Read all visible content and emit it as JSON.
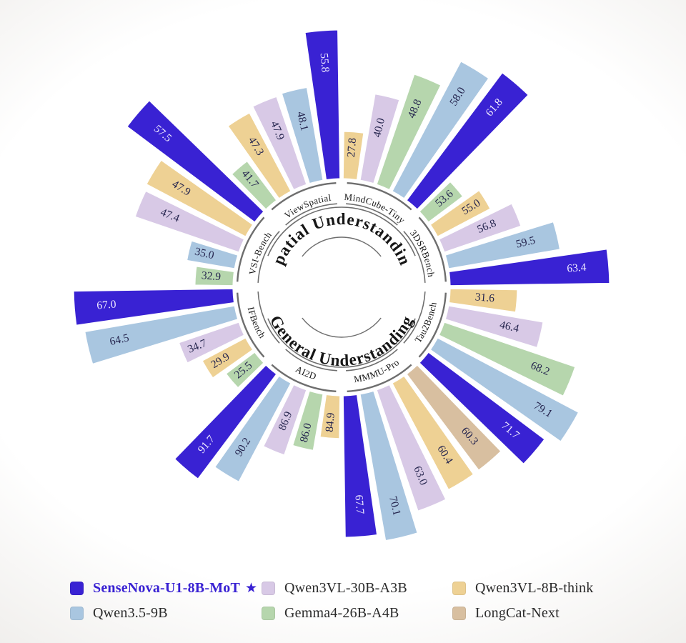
{
  "chart_data": {
    "type": "radial-bar",
    "center_labels": {
      "top": "Spatial Understanding",
      "bottom": "General Understanding"
    },
    "legend_position": "bottom",
    "accent_color": "#3922d3",
    "value_text_dark": "#26264f",
    "value_text_light": "#efeaff",
    "ring_color": "#6e6e6e",
    "models": [
      {
        "key": "sense",
        "name": "SenseNova-U1-8B-MoT",
        "color": "#3922d3"
      },
      {
        "key": "qwen35",
        "name": "Qwen3.5-9B",
        "color": "#a9c6e0"
      },
      {
        "key": "a3b",
        "name": "Qwen3VL-30B-A3B",
        "color": "#d8c9e6"
      },
      {
        "key": "gemma",
        "name": "Gemma4-26B-A4B",
        "color": "#b6d6ad"
      },
      {
        "key": "think",
        "name": "Qwen3VL-8B-think",
        "color": "#eed194"
      },
      {
        "key": "longcat",
        "name": "LongCat-Next",
        "color": "#d8bfa0"
      }
    ],
    "sectors": [
      {
        "name": "MindCube-Tiny",
        "start_deg": 0,
        "end_deg": 45,
        "flip_labels": false,
        "axis": [
          13.5,
          61.8
        ],
        "bars": [
          {
            "model": "think",
            "value": "27.8"
          },
          {
            "model": "a3b",
            "value": "40.0"
          },
          {
            "model": "gemma",
            "value": "48.8"
          },
          {
            "model": "qwen35",
            "value": "58.0"
          },
          {
            "model": "sense",
            "value": "61.8"
          }
        ]
      },
      {
        "name": "3DSRBench",
        "start_deg": 45,
        "end_deg": 90,
        "flip_labels": false,
        "axis": [
          50.0,
          63.4
        ],
        "bars": [
          {
            "model": "gemma",
            "value": "53.6"
          },
          {
            "model": "think",
            "value": "55.0"
          },
          {
            "model": "a3b",
            "value": "56.8"
          },
          {
            "model": "qwen35",
            "value": "59.5"
          },
          {
            "model": "sense",
            "value": "63.4"
          }
        ]
      },
      {
        "name": "Tau2Bench",
        "start_deg": 90,
        "end_deg": 135,
        "flip_labels": true,
        "axis": [
          -3.0,
          79.1
        ],
        "bars": [
          {
            "model": "think",
            "value": "31.6"
          },
          {
            "model": "a3b",
            "value": "46.4"
          },
          {
            "model": "gemma",
            "value": "68.2"
          },
          {
            "model": "qwen35",
            "value": "79.1"
          },
          {
            "model": "sense",
            "value": "71.7"
          }
        ]
      },
      {
        "name": "MMMU-Pro",
        "start_deg": 135,
        "end_deg": 180,
        "flip_labels": true,
        "axis": [
          19.1,
          73.8
        ],
        "bars": [
          {
            "model": "longcat",
            "value": "60.3"
          },
          {
            "model": "think",
            "value": "60.4"
          },
          {
            "model": "a3b",
            "value": "63.0"
          },
          {
            "model": "qwen35",
            "value": "70.1"
          },
          {
            "model": "sense",
            "value": "67.7"
          }
        ]
      },
      {
        "name": "AI2D",
        "start_deg": 180,
        "end_deg": 225,
        "flip_labels": true,
        "axis": [
          81.6,
          93.9
        ],
        "bars": [
          {
            "model": "think",
            "value": "84.9"
          },
          {
            "model": "gemma",
            "value": "86.0"
          },
          {
            "model": "a3b",
            "value": "86.9"
          },
          {
            "model": "qwen35",
            "value": "90.2"
          },
          {
            "model": "sense",
            "value": "91.7"
          }
        ]
      },
      {
        "name": "IFBench",
        "start_deg": 225,
        "end_deg": 270,
        "flip_labels": true,
        "axis": [
          13.5,
          67.0
        ],
        "bars": [
          {
            "model": "gemma",
            "value": "25.5"
          },
          {
            "model": "think",
            "value": "29.9"
          },
          {
            "model": "a3b",
            "value": "34.7"
          },
          {
            "model": "qwen35",
            "value": "64.5"
          },
          {
            "model": "sense",
            "value": "67.0"
          }
        ]
      },
      {
        "name": "VSI-Bench",
        "start_deg": 270,
        "end_deg": 315,
        "flip_labels": false,
        "axis": [
          25.2,
          57.5
        ],
        "bars": [
          {
            "model": "gemma",
            "value": "32.9"
          },
          {
            "model": "qwen35",
            "value": "35.0"
          },
          {
            "model": "a3b",
            "value": "47.4"
          },
          {
            "model": "think",
            "value": "47.9"
          },
          {
            "model": "sense",
            "value": "57.5"
          }
        ]
      },
      {
        "name": "ViewSpatial",
        "start_deg": 315,
        "end_deg": 360,
        "flip_labels": false,
        "axis": [
          34.8,
          57.3
        ],
        "bars": [
          {
            "model": "gemma",
            "value": "41.7"
          },
          {
            "model": "think",
            "value": "47.3"
          },
          {
            "model": "a3b",
            "value": "47.9"
          },
          {
            "model": "qwen35",
            "value": "48.1"
          },
          {
            "model": "sense",
            "value": "55.8"
          }
        ]
      }
    ]
  },
  "legend": {
    "items": [
      {
        "key": "sense",
        "label": "SenseNova-U1-8B-MoT",
        "star": "★",
        "emphasized": true
      },
      {
        "key": "a3b",
        "label": "Qwen3VL-30B-A3B",
        "star": "",
        "emphasized": false
      },
      {
        "key": "think",
        "label": "Qwen3VL-8B-think",
        "star": "",
        "emphasized": false
      },
      {
        "key": "qwen35",
        "label": "Qwen3.5-9B",
        "star": "",
        "emphasized": false
      },
      {
        "key": "gemma",
        "label": "Gemma4-26B-A4B",
        "star": "",
        "emphasized": false
      },
      {
        "key": "longcat",
        "label": "LongCat-Next",
        "star": "",
        "emphasized": false
      }
    ]
  }
}
